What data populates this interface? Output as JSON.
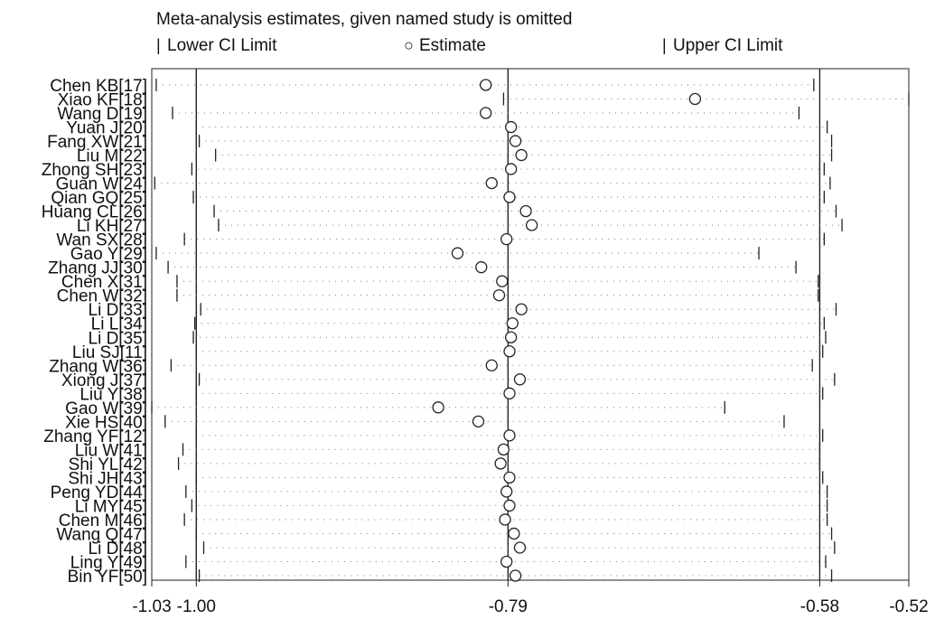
{
  "chart_data": {
    "type": "scatter",
    "title": "Meta-analysis estimates, given named study is omitted",
    "legend": [
      {
        "key": "lower",
        "marker": "|",
        "label": "Lower CI Limit"
      },
      {
        "key": "estimate",
        "marker": "○",
        "label": "Estimate"
      },
      {
        "key": "upper",
        "marker": "|",
        "label": "Upper CI Limit"
      }
    ],
    "legend_position": "top",
    "xlim": [
      -1.03,
      -0.52
    ],
    "x_ticks": [
      -1.03,
      -1.0,
      -0.79,
      -0.58,
      -0.52
    ],
    "x_tick_labels": [
      "-1.03",
      "-1.00",
      "-0.79",
      "-0.58",
      "-0.52"
    ],
    "reference_lines": [
      -1.0,
      -0.79,
      -0.58
    ],
    "grid": false,
    "studies": [
      {
        "label": "Chen KB[17]",
        "lower": -1.027,
        "estimate": -0.805,
        "upper": -0.584
      },
      {
        "label": "Xiao KF[18]",
        "lower": -0.793,
        "estimate": -0.664,
        "upper": -0.52
      },
      {
        "label": "Wang D[19]",
        "lower": -1.016,
        "estimate": -0.805,
        "upper": -0.594
      },
      {
        "label": "Yuan J[20]",
        "lower": -1.0,
        "estimate": -0.788,
        "upper": -0.575
      },
      {
        "label": "Fang XW[21]",
        "lower": -0.998,
        "estimate": -0.785,
        "upper": -0.572
      },
      {
        "label": "Liu M[22]",
        "lower": -0.987,
        "estimate": -0.781,
        "upper": -0.572
      },
      {
        "label": "Zhong SH[23]",
        "lower": -1.003,
        "estimate": -0.788,
        "upper": -0.577
      },
      {
        "label": "Guan W[24]",
        "lower": -1.028,
        "estimate": -0.801,
        "upper": -0.573
      },
      {
        "label": "Qian GQ[25]",
        "lower": -1.002,
        "estimate": -0.789,
        "upper": -0.577
      },
      {
        "label": "Huang CL[26]",
        "lower": -0.988,
        "estimate": -0.778,
        "upper": -0.569
      },
      {
        "label": "Li KH[27]",
        "lower": -0.985,
        "estimate": -0.774,
        "upper": -0.565
      },
      {
        "label": "Wan SX[28]",
        "lower": -1.008,
        "estimate": -0.791,
        "upper": -0.577
      },
      {
        "label": "Gao Y[29]",
        "lower": -1.027,
        "estimate": -0.824,
        "upper": -0.621
      },
      {
        "label": "Zhang JJ[30]",
        "lower": -1.019,
        "estimate": -0.808,
        "upper": -0.596
      },
      {
        "label": "Chen X[31]",
        "lower": -1.013,
        "estimate": -0.794,
        "upper": -0.581
      },
      {
        "label": "Chen W[32]",
        "lower": -1.013,
        "estimate": -0.796,
        "upper": -0.581
      },
      {
        "label": "Li D[33]",
        "lower": -0.997,
        "estimate": -0.781,
        "upper": -0.569
      },
      {
        "label": "Li L[34]",
        "lower": -1.001,
        "estimate": -0.787,
        "upper": -0.577
      },
      {
        "label": "Li D[35]",
        "lower": -1.002,
        "estimate": -0.788,
        "upper": -0.576
      },
      {
        "label": "Liu SJ[11]",
        "lower": -1.0,
        "estimate": -0.789,
        "upper": -0.578
      },
      {
        "label": "Zhang W[36]",
        "lower": -1.017,
        "estimate": -0.801,
        "upper": -0.585
      },
      {
        "label": "Xiong J[37]",
        "lower": -0.998,
        "estimate": -0.782,
        "upper": -0.57
      },
      {
        "label": "Liu Y[38]",
        "lower": -1.0,
        "estimate": -0.789,
        "upper": -0.578
      },
      {
        "label": "Gao W[39]",
        "lower": -1.03,
        "estimate": -0.837,
        "upper": -0.644
      },
      {
        "label": "Xie HS[40]",
        "lower": -1.021,
        "estimate": -0.81,
        "upper": -0.604
      },
      {
        "label": "Zhang YF[12]",
        "lower": -1.0,
        "estimate": -0.789,
        "upper": -0.578
      },
      {
        "label": "Liu W[41]",
        "lower": -1.009,
        "estimate": -0.793,
        "upper": -0.58
      },
      {
        "label": "Shi YL[42]",
        "lower": -1.012,
        "estimate": -0.795,
        "upper": -0.58
      },
      {
        "label": "Shi JH[43]",
        "lower": -1.0,
        "estimate": -0.789,
        "upper": -0.578
      },
      {
        "label": "Peng YD[44]",
        "lower": -1.007,
        "estimate": -0.791,
        "upper": -0.575
      },
      {
        "label": "Li MY[45]",
        "lower": -1.003,
        "estimate": -0.789,
        "upper": -0.575
      },
      {
        "label": "Chen M[46]",
        "lower": -1.008,
        "estimate": -0.792,
        "upper": -0.575
      },
      {
        "label": "Wang Q[47]",
        "lower": -1.0,
        "estimate": -0.786,
        "upper": -0.572
      },
      {
        "label": "Li D[48]",
        "lower": -0.995,
        "estimate": -0.782,
        "upper": -0.57
      },
      {
        "label": "Ling Y[49]",
        "lower": -1.007,
        "estimate": -0.791,
        "upper": -0.576
      },
      {
        "label": "Bin YF[50]",
        "lower": -0.998,
        "estimate": -0.785,
        "upper": -0.572
      }
    ]
  }
}
